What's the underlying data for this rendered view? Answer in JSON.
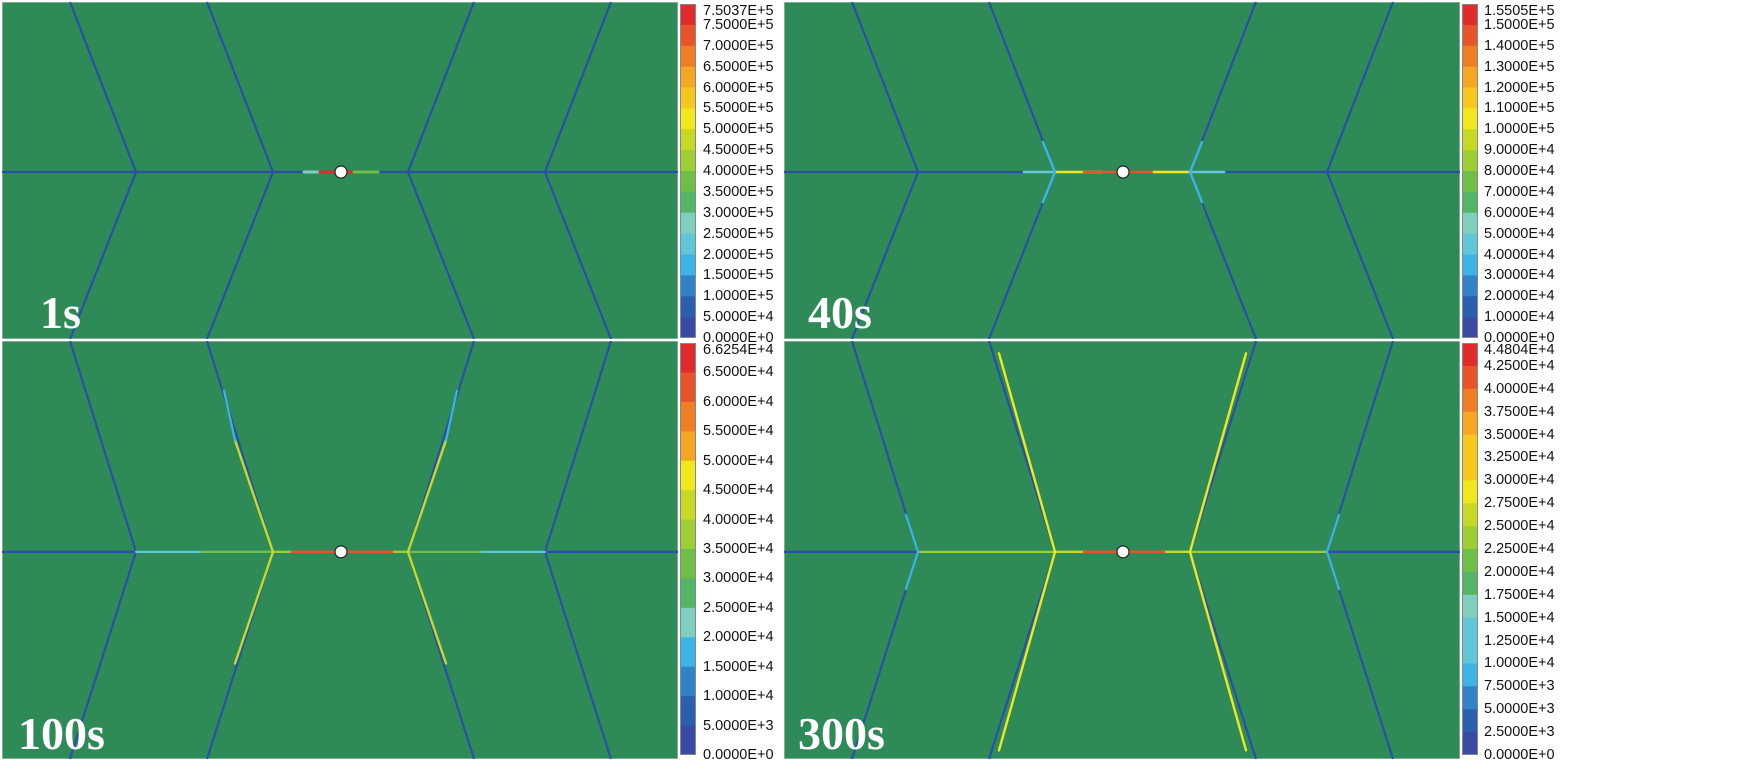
{
  "colors": {
    "background": "#2e8b57",
    "fracture_base": "#2b4fa8",
    "border": "#cfcfcf",
    "legend_scale": [
      "#3a4ba3",
      "#2b5fb0",
      "#2f83c6",
      "#3db3e6",
      "#5fc7d6",
      "#7ecfc0",
      "#55b567",
      "#6fbe45",
      "#9ccf33",
      "#c8d925",
      "#f0e81c",
      "#f6c81e",
      "#f5a623",
      "#ef7d22",
      "#e8542a",
      "#e32a2a"
    ]
  },
  "panels": [
    {
      "id": "p1",
      "time_label": "1s",
      "legend": [
        "7.5037E+5",
        "7.5000E+5",
        "7.0000E+5",
        "6.5000E+5",
        "6.0000E+5",
        "5.5000E+5",
        "5.0000E+5",
        "4.5000E+5",
        "4.0000E+5",
        "3.5000E+5",
        "3.0000E+5",
        "2.5000E+5",
        "2.0000E+5",
        "1.5000E+5",
        "1.0000E+5",
        "5.0000E+4",
        "0.0000E+0"
      ]
    },
    {
      "id": "p2",
      "time_label": "40s",
      "legend": [
        "1.5505E+5",
        "1.5000E+5",
        "1.4000E+5",
        "1.3000E+5",
        "1.2000E+5",
        "1.1000E+5",
        "1.0000E+5",
        "9.0000E+4",
        "8.0000E+4",
        "7.0000E+4",
        "6.0000E+4",
        "5.0000E+4",
        "4.0000E+4",
        "3.0000E+4",
        "2.0000E+4",
        "1.0000E+4",
        "0.0000E+0"
      ]
    },
    {
      "id": "p3",
      "time_label": "100s",
      "legend": [
        "6.6254E+4",
        "6.5000E+4",
        "6.0000E+4",
        "5.5000E+4",
        "5.0000E+4",
        "4.5000E+4",
        "4.0000E+4",
        "3.5000E+4",
        "3.0000E+4",
        "2.5000E+4",
        "2.0000E+4",
        "1.5000E+4",
        "1.0000E+4",
        "5.0000E+3",
        "0.0000E+0"
      ]
    },
    {
      "id": "p4",
      "time_label": "300s",
      "legend": [
        "4.4804E+4",
        "4.2500E+4",
        "4.0000E+4",
        "3.7500E+4",
        "3.5000E+4",
        "3.2500E+4",
        "3.0000E+4",
        "2.7500E+4",
        "2.5000E+4",
        "2.2500E+4",
        "2.0000E+4",
        "1.7500E+4",
        "1.5000E+4",
        "1.2500E+4",
        "1.0000E+4",
        "7.5000E+3",
        "5.0000E+3",
        "2.5000E+3",
        "0.0000E+0"
      ]
    }
  ]
}
